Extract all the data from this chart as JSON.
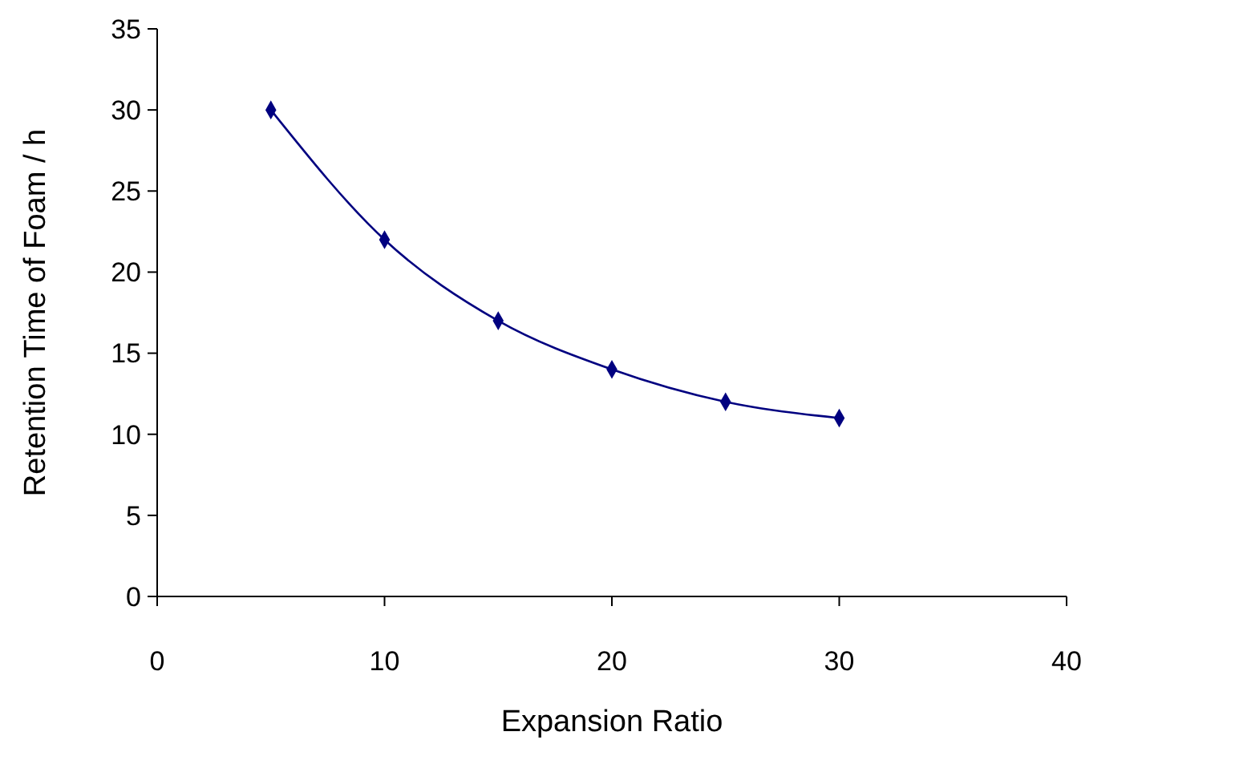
{
  "chart_data": {
    "type": "line",
    "xlabel": "Expansion Ratio",
    "ylabel": "Retention Time of Foam / h",
    "x": [
      5,
      10,
      15,
      20,
      25,
      30
    ],
    "series": [
      {
        "color": "#000080",
        "values": [
          30,
          22,
          17,
          14,
          12,
          11
        ]
      }
    ],
    "xlim": [
      0,
      40
    ],
    "xticks": [
      0,
      10,
      20,
      30,
      40
    ],
    "ylim": [
      0,
      35
    ],
    "yticks": [
      0,
      5,
      10,
      15,
      20,
      25,
      30,
      35
    ],
    "grid": false,
    "marker": "diamond",
    "line_style": "solid"
  }
}
